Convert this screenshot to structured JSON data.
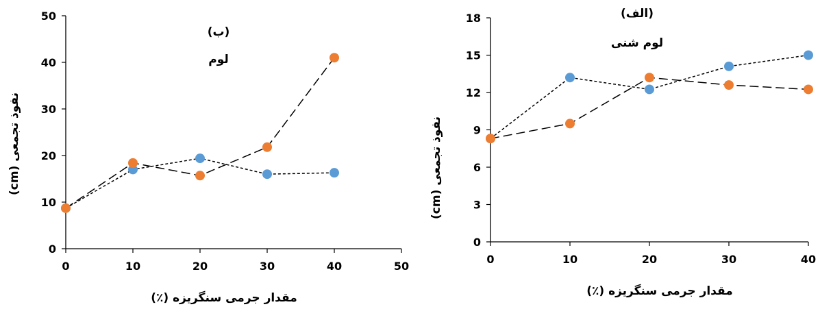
{
  "colors": {
    "blue": "#5B9BD5",
    "orange": "#ED7D31",
    "axis": "#000000"
  },
  "chart_data": [
    {
      "type": "line",
      "panel": "right",
      "title": "(الف)",
      "subtitle": "لوم شنی",
      "xlabel": "مقدار جرمی سنگریزه (٪)",
      "ylabel": "نفوذ تجمعی (cm)",
      "xlim": [
        0,
        40
      ],
      "ylim": [
        0,
        18
      ],
      "xticks": [
        "0",
        "10",
        "20",
        "30",
        "40"
      ],
      "yticks": [
        "0",
        "3",
        "6",
        "9",
        "12",
        "15",
        "18"
      ],
      "grid": false,
      "series": [
        {
          "color": "#5B9BD5",
          "dash": "short",
          "x": [
            0,
            10,
            20,
            30,
            40
          ],
          "y": [
            8.3,
            13.2,
            12.25,
            14.1,
            15.0
          ]
        },
        {
          "color": "#ED7D31",
          "dash": "long",
          "x": [
            0,
            10,
            20,
            30,
            40
          ],
          "y": [
            8.3,
            9.5,
            13.2,
            12.6,
            12.25
          ]
        }
      ]
    },
    {
      "type": "line",
      "panel": "left",
      "title": "(ب)",
      "subtitle": "لوم",
      "xlabel": "مقدار جرمی سنگریزه (٪)",
      "ylabel": "نفوذ تجمعی (cm)",
      "xlim": [
        0,
        50
      ],
      "ylim": [
        0,
        50
      ],
      "xticks": [
        "0",
        "10",
        "20",
        "30",
        "40",
        "50"
      ],
      "yticks": [
        "0",
        "10",
        "20",
        "30",
        "40",
        "50"
      ],
      "grid": false,
      "series": [
        {
          "color": "#5B9BD5",
          "dash": "short",
          "x": [
            0,
            10,
            20,
            30,
            40
          ],
          "y": [
            8.7,
            17.0,
            19.4,
            16.0,
            16.3
          ]
        },
        {
          "color": "#ED7D31",
          "dash": "long",
          "x": [
            0,
            10,
            20,
            30,
            40
          ],
          "y": [
            8.7,
            18.4,
            15.7,
            21.8,
            41.0
          ]
        }
      ]
    }
  ]
}
